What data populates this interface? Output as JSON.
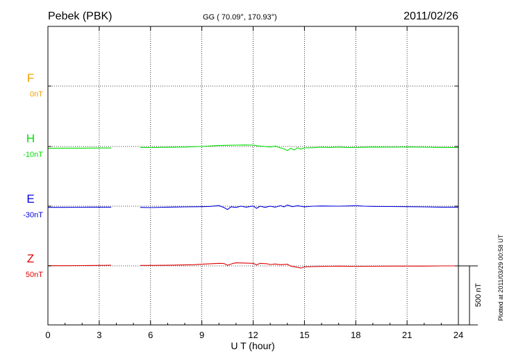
{
  "chart_data": {
    "type": "line",
    "station": "Pebek (PBK)",
    "coords": "GG ( 70.09°, 170.93°)",
    "date": "2011/02/26",
    "xlabel": "U T (hour)",
    "xlim": [
      0,
      24
    ],
    "x_ticks": [
      "0",
      "3",
      "6",
      "9",
      "12",
      "15",
      "18",
      "21",
      "24"
    ],
    "grid": true,
    "plotted_note": "Plotted at 2011/03/29 00:58 UT",
    "scale_bar_label": "500 nT",
    "scale_bar_nT": 500,
    "gap_hours": [
      3.8,
      5.4
    ],
    "series": [
      {
        "name": "F",
        "baseline_label": "0nT",
        "color": "#f0a000",
        "points": []
      },
      {
        "name": "H",
        "baseline_label": "-10nT",
        "color": "#00e000",
        "points": [
          [
            0,
            -15
          ],
          [
            1,
            -14
          ],
          [
            2,
            -14
          ],
          [
            3,
            -13
          ],
          [
            3.7,
            -13
          ],
          [
            5.4,
            -8
          ],
          [
            6,
            -8
          ],
          [
            7,
            -7
          ],
          [
            8,
            -5
          ],
          [
            8.5,
            -2
          ],
          [
            9,
            0
          ],
          [
            9.5,
            5
          ],
          [
            10,
            8
          ],
          [
            10.5,
            10
          ],
          [
            11,
            12
          ],
          [
            11.5,
            13
          ],
          [
            12,
            12
          ],
          [
            12.3,
            4
          ],
          [
            12.6,
            2
          ],
          [
            13,
            -5
          ],
          [
            13.3,
            4
          ],
          [
            13.5,
            -8
          ],
          [
            13.8,
            -20
          ],
          [
            14.0,
            -35
          ],
          [
            14.2,
            -15
          ],
          [
            14.4,
            -30
          ],
          [
            14.6,
            -10
          ],
          [
            14.8,
            -22
          ],
          [
            15,
            -12
          ],
          [
            15.5,
            -10
          ],
          [
            16,
            -6
          ],
          [
            16.5,
            -8
          ],
          [
            17,
            -5
          ],
          [
            17.5,
            -8
          ],
          [
            18,
            -8
          ],
          [
            19,
            -5
          ],
          [
            20,
            -6
          ],
          [
            21,
            -4
          ],
          [
            22,
            -6
          ],
          [
            23,
            -8
          ],
          [
            24,
            -8
          ]
        ]
      },
      {
        "name": "E",
        "baseline_label": "-30nT",
        "color": "#0000e0",
        "points": [
          [
            0,
            -10
          ],
          [
            1,
            -10
          ],
          [
            2,
            -9
          ],
          [
            3,
            -8
          ],
          [
            3.7,
            -8
          ],
          [
            5.4,
            -10
          ],
          [
            6,
            -12
          ],
          [
            7,
            -8
          ],
          [
            8,
            -6
          ],
          [
            9,
            -4
          ],
          [
            9.5,
            -2
          ],
          [
            10,
            5
          ],
          [
            10.3,
            -12
          ],
          [
            10.5,
            -28
          ],
          [
            10.7,
            -5
          ],
          [
            11,
            -10
          ],
          [
            11.3,
            0
          ],
          [
            11.6,
            -8
          ],
          [
            12,
            2
          ],
          [
            12.2,
            -18
          ],
          [
            12.4,
            0
          ],
          [
            12.7,
            -10
          ],
          [
            13,
            0
          ],
          [
            13.3,
            -8
          ],
          [
            13.6,
            5
          ],
          [
            13.8,
            -6
          ],
          [
            14,
            10
          ],
          [
            14.3,
            -4
          ],
          [
            14.6,
            4
          ],
          [
            15,
            -5
          ],
          [
            15.5,
            0
          ],
          [
            16,
            2
          ],
          [
            17,
            0
          ],
          [
            18,
            4
          ],
          [
            18.5,
            0
          ],
          [
            19,
            -2
          ],
          [
            20,
            -3
          ],
          [
            21,
            -4
          ],
          [
            22,
            -6
          ],
          [
            23,
            -8
          ],
          [
            24,
            -8
          ]
        ]
      },
      {
        "name": "Z",
        "baseline_label": "50nT",
        "color": "#e00000",
        "points": [
          [
            0,
            2
          ],
          [
            1,
            2
          ],
          [
            2,
            3
          ],
          [
            3,
            4
          ],
          [
            3.7,
            5
          ],
          [
            5.4,
            4
          ],
          [
            6,
            4
          ],
          [
            7,
            5
          ],
          [
            8,
            8
          ],
          [
            8.5,
            10
          ],
          [
            9,
            14
          ],
          [
            9.5,
            18
          ],
          [
            10,
            22
          ],
          [
            10.3,
            20
          ],
          [
            10.5,
            5
          ],
          [
            10.8,
            20
          ],
          [
            11,
            26
          ],
          [
            11.5,
            24
          ],
          [
            12,
            22
          ],
          [
            12.2,
            8
          ],
          [
            12.4,
            22
          ],
          [
            12.8,
            18
          ],
          [
            13,
            12
          ],
          [
            13.3,
            16
          ],
          [
            13.6,
            10
          ],
          [
            14,
            14
          ],
          [
            14.2,
            -2
          ],
          [
            14.5,
            -10
          ],
          [
            14.8,
            -18
          ],
          [
            15,
            -8
          ],
          [
            15.5,
            -6
          ],
          [
            16,
            -4
          ],
          [
            16.5,
            -3
          ],
          [
            17,
            -2
          ],
          [
            18,
            -4
          ],
          [
            19,
            -3
          ],
          [
            20,
            -2
          ],
          [
            21,
            -2
          ],
          [
            22,
            -2
          ],
          [
            23,
            0
          ],
          [
            24,
            0
          ]
        ]
      }
    ]
  }
}
